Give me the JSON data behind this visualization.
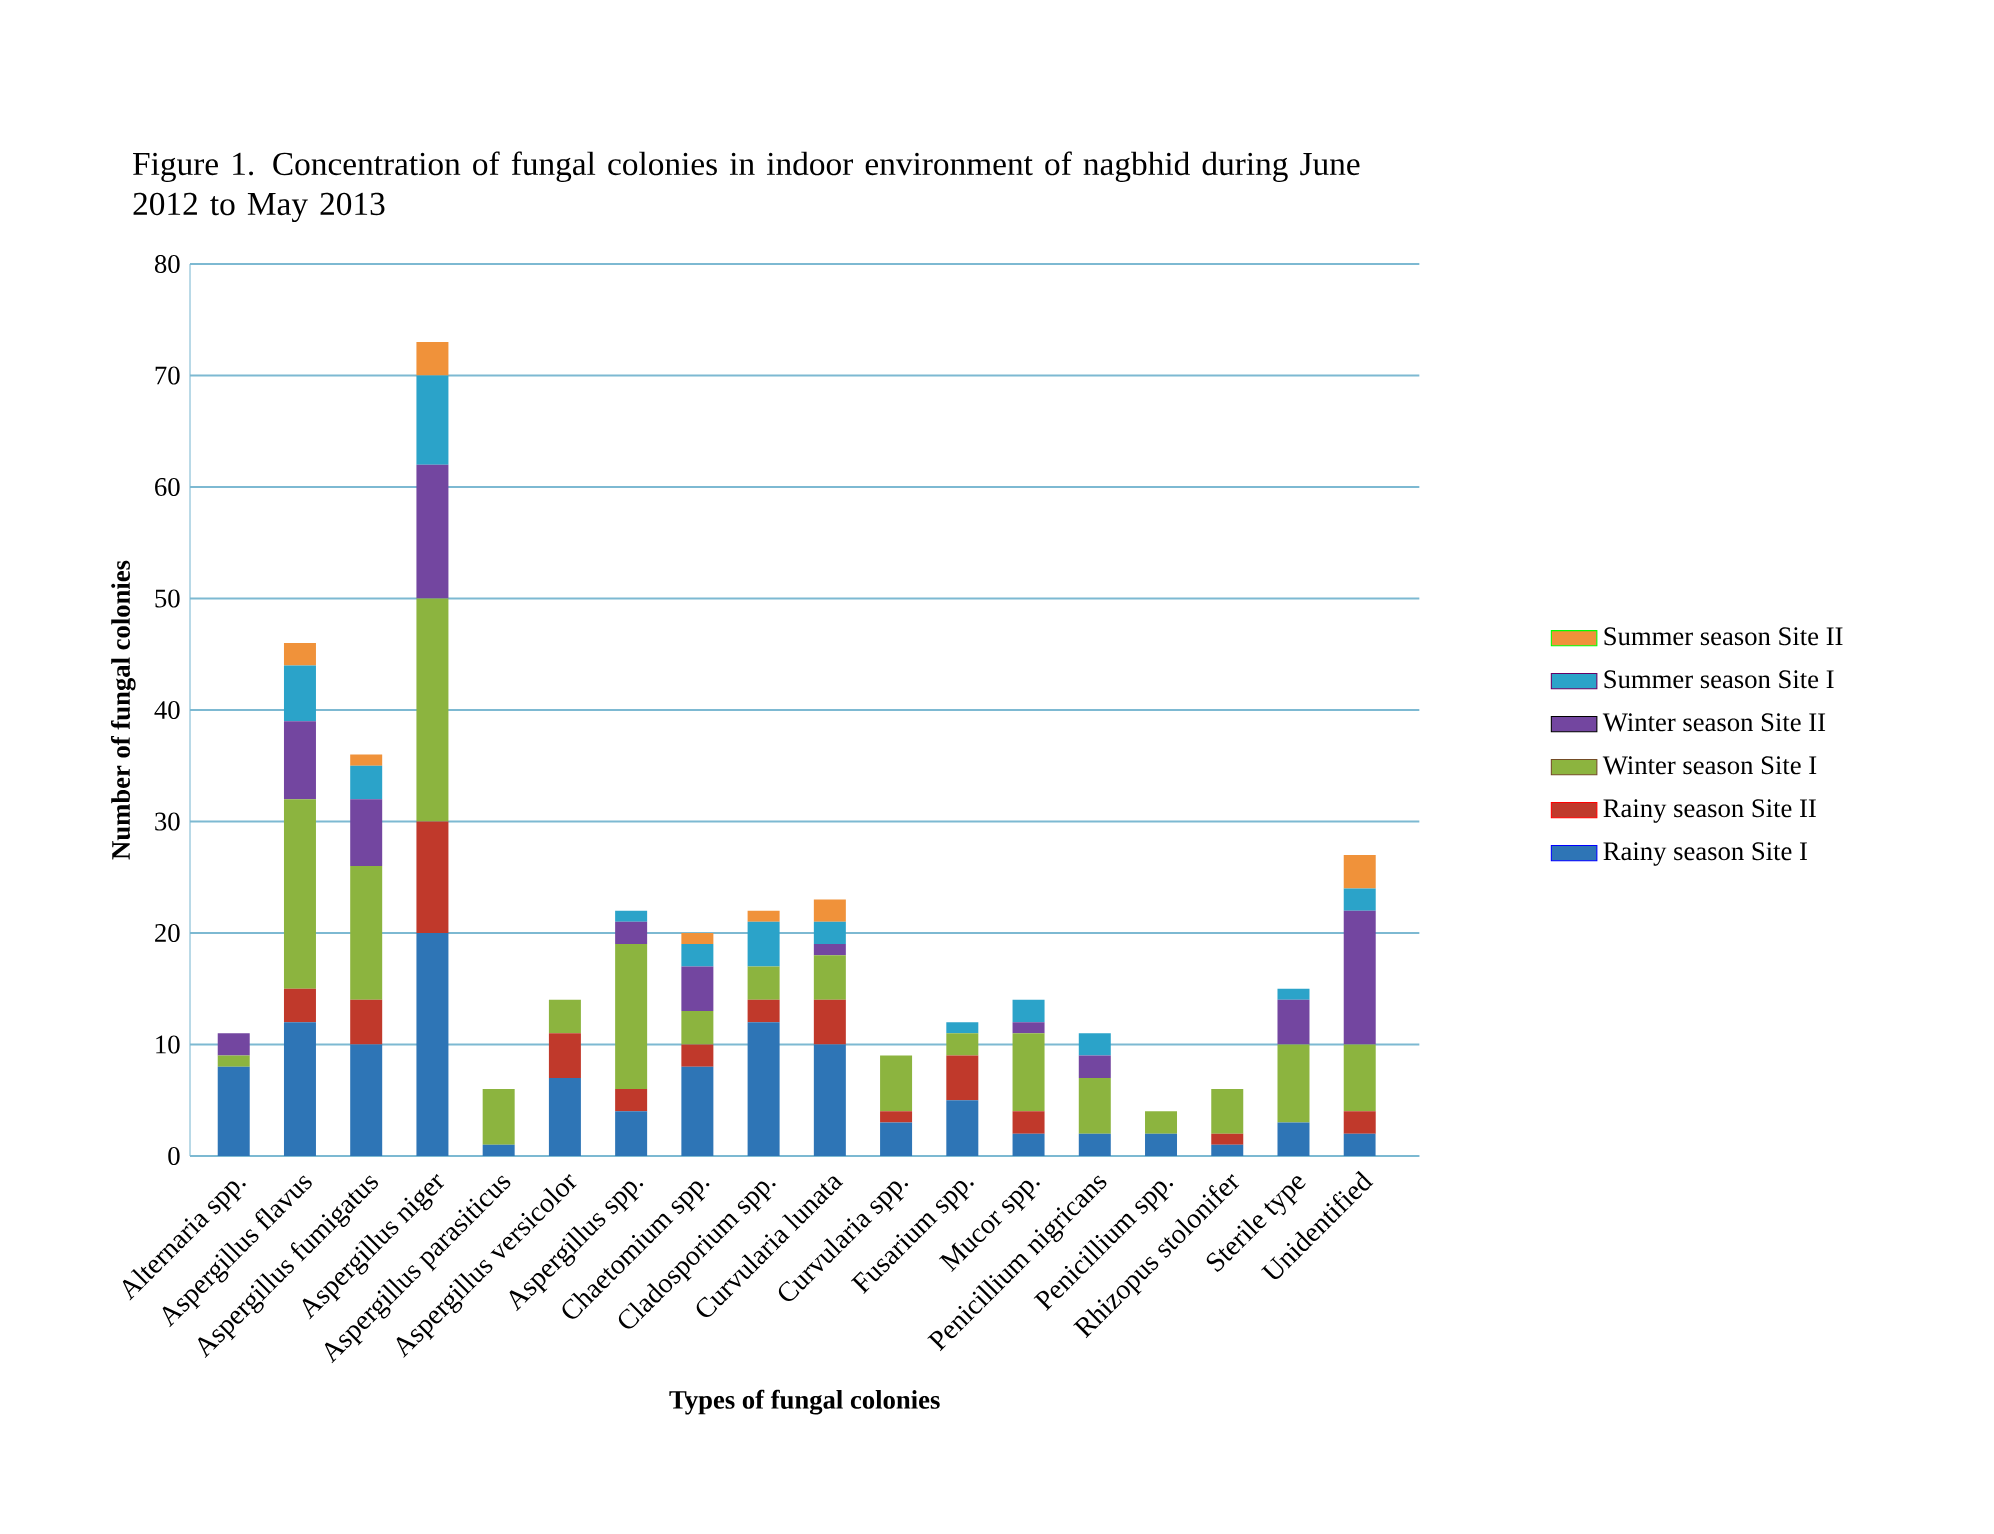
{
  "chart_data": {
    "type": "bar",
    "stacked": true,
    "title": "Figure 1.  Concentration of fungal  colonies in indoor environment of nagbhid during June 2012 to May 2013",
    "xlabel": "Types of fungal colonies",
    "ylabel": "Number of fungal colonies",
    "categories": [
      "Alternaria spp.",
      "Aspergillus flavus",
      "Aspergillus fumigatus",
      "Aspergillus niger",
      "Aspergillus parasiticus",
      "Aspergillus versicolor",
      "Aspergillus spp.",
      "Chaetomium spp.",
      "Cladosporium spp.",
      "Curvularia lunata",
      "Curvularia spp.",
      "Fusarium spp.",
      "Mucor spp.",
      "Penicillium nigricans",
      "Penicillium spp.",
      "Rhizopus stolonifer",
      "Sterile type",
      "Unidentified"
    ],
    "series": [
      {
        "name": "Rainy season Site I",
        "color": "#2e75b6",
        "values": [
          8,
          12,
          10,
          20,
          1,
          7,
          4,
          8,
          12,
          10,
          3,
          5,
          2,
          2,
          2,
          1,
          3,
          2
        ]
      },
      {
        "name": "Rainy season Site II",
        "color": "#c0392b",
        "values": [
          0,
          3,
          4,
          10,
          0,
          4,
          2,
          2,
          2,
          4,
          1,
          4,
          2,
          0,
          0,
          1,
          0,
          2
        ]
      },
      {
        "name": "Winter season Site I",
        "color": "#8cb43f",
        "values": [
          1,
          17,
          12,
          20,
          5,
          3,
          13,
          3,
          3,
          4,
          5,
          2,
          7,
          5,
          2,
          4,
          7,
          6
        ]
      },
      {
        "name": "Winter season Site II",
        "color": "#7346a0",
        "values": [
          2,
          7,
          6,
          12,
          0,
          0,
          2,
          4,
          0,
          1,
          0,
          0,
          1,
          2,
          0,
          0,
          4,
          12
        ]
      },
      {
        "name": "Summer season Site I",
        "color": "#2ba3c9",
        "values": [
          0,
          5,
          3,
          8,
          0,
          0,
          1,
          2,
          4,
          2,
          0,
          1,
          2,
          2,
          0,
          0,
          1,
          2
        ]
      },
      {
        "name": "Summer season Site II",
        "color": "#f0923a",
        "values": [
          0,
          2,
          1,
          3,
          0,
          0,
          0,
          1,
          1,
          2,
          0,
          0,
          0,
          0,
          0,
          0,
          0,
          3
        ]
      }
    ],
    "ylim": [
      0,
      80
    ],
    "yticks": [
      0,
      10,
      20,
      30,
      40,
      50,
      60,
      70,
      80
    ],
    "grid": "y",
    "legend": "right"
  }
}
